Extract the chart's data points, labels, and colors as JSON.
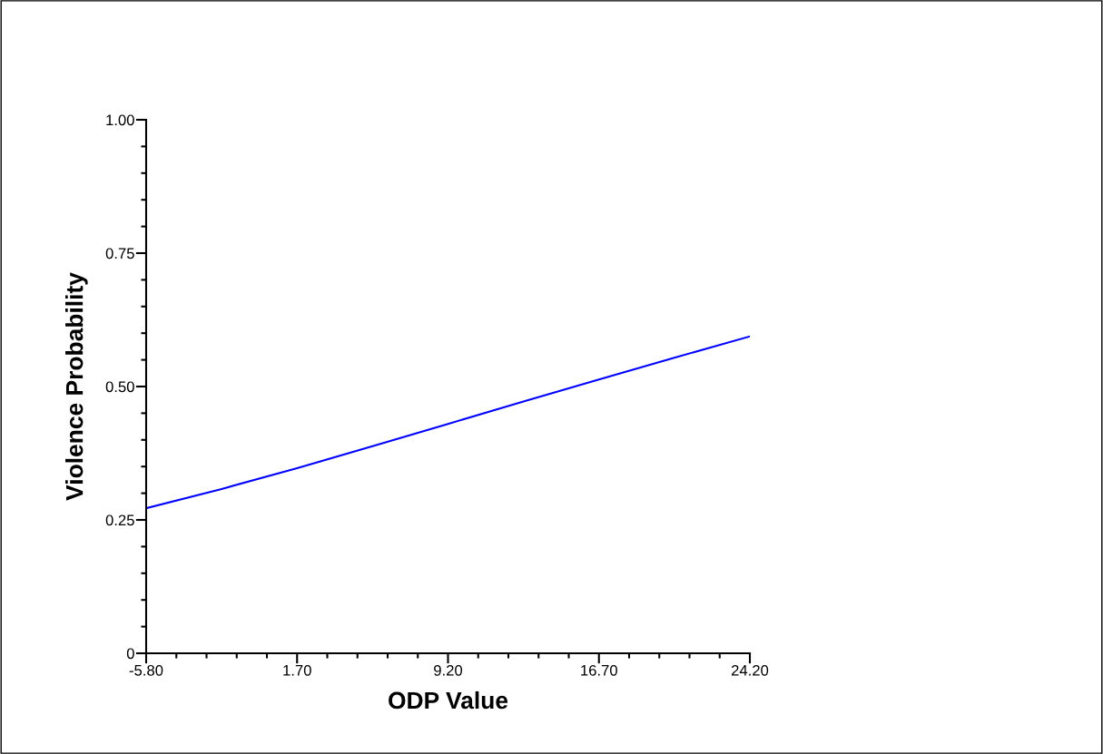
{
  "chart_data": {
    "type": "line",
    "xlabel": "ODP Value",
    "ylabel": "Violence Probability",
    "x": [
      -5.8,
      -2.05,
      1.7,
      5.45,
      9.2,
      12.95,
      16.7,
      20.45,
      24.2
    ],
    "series": [
      {
        "color": "#0000ff",
        "values": [
          0.272,
          0.308,
          0.347,
          0.388,
          0.43,
          0.472,
          0.513,
          0.554,
          0.594
        ]
      }
    ],
    "xlim": [
      -5.8,
      24.2
    ],
    "xticks": [
      {
        "value": -5.8,
        "label": "-5.80"
      },
      {
        "value": 1.7,
        "label": "1.70"
      },
      {
        "value": 9.2,
        "label": "9.20"
      },
      {
        "value": 16.7,
        "label": "16.70"
      },
      {
        "value": 24.2,
        "label": "24.20"
      }
    ],
    "ylim": [
      0,
      1
    ],
    "yticks": [
      0,
      {
        "value": 0.25,
        "label": "0.25"
      },
      {
        "value": 0.5,
        "label": "0.50"
      },
      {
        "value": 0.75,
        "label": "0.75"
      },
      {
        "value": 1,
        "label": "1.00"
      }
    ],
    "grid": false,
    "legend": false,
    "marker": "none",
    "line_style": "solid"
  }
}
